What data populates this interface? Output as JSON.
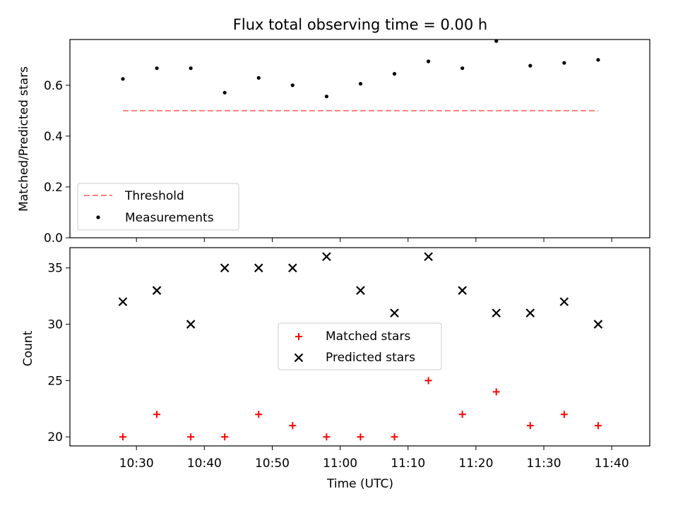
{
  "chart_data": [
    {
      "type": "scatter",
      "title": "Flux total observing time = 0.00 h",
      "xlabel": "",
      "ylabel": "Matched/Predicted stars",
      "ylim": [
        0,
        0.78
      ],
      "yticks": [
        "0.0",
        "0.2",
        "0.4",
        "0.6"
      ],
      "x": [
        "10:28",
        "10:33",
        "10:38",
        "10:43",
        "10:48",
        "10:53",
        "10:58",
        "11:03",
        "11:08",
        "11:13",
        "11:18",
        "11:23",
        "11:28",
        "11:33",
        "11:38"
      ],
      "series": [
        {
          "name": "Measurements",
          "marker": "dot",
          "color": "#000000",
          "values": [
            0.625,
            0.667,
            0.667,
            0.571,
            0.629,
            0.6,
            0.556,
            0.606,
            0.645,
            0.694,
            0.667,
            0.774,
            0.677,
            0.688,
            0.7
          ]
        },
        {
          "name": "Threshold",
          "marker": "dashed-line",
          "color": "#ff7f7f",
          "values": [
            0.5,
            0.5
          ]
        }
      ],
      "legend": "lower-left",
      "grid": false
    },
    {
      "type": "scatter",
      "title": "",
      "xlabel": "Time (UTC)",
      "ylabel": "Count",
      "ylim": [
        19.2,
        36.8
      ],
      "yticks": [
        "20",
        "25",
        "30",
        "35"
      ],
      "xticks": [
        "10:30",
        "10:40",
        "10:50",
        "11:00",
        "11:10",
        "11:20",
        "11:30",
        "11:40"
      ],
      "x": [
        "10:28",
        "10:33",
        "10:38",
        "10:43",
        "10:48",
        "10:53",
        "10:58",
        "11:03",
        "11:08",
        "11:13",
        "11:18",
        "11:23",
        "11:28",
        "11:33",
        "11:38"
      ],
      "series": [
        {
          "name": "Matched stars",
          "marker": "plus",
          "color": "#ff0000",
          "values": [
            20,
            22,
            20,
            20,
            22,
            21,
            20,
            20,
            20,
            25,
            22,
            24,
            21,
            22,
            21
          ]
        },
        {
          "name": "Predicted stars",
          "marker": "x",
          "color": "#000000",
          "values": [
            32,
            33,
            30,
            35,
            35,
            35,
            36,
            33,
            31,
            36,
            33,
            31,
            31,
            32,
            30
          ]
        }
      ],
      "legend": "center",
      "grid": false
    }
  ]
}
